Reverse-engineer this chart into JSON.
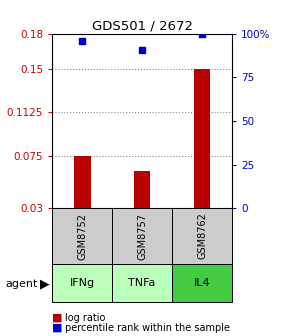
{
  "title": "GDS501 / 2672",
  "categories": [
    "IFNg",
    "TNFa",
    "IL4"
  ],
  "gsm_labels": [
    "GSM8752",
    "GSM8757",
    "GSM8762"
  ],
  "log_ratios": [
    0.075,
    0.062,
    0.15
  ],
  "percentile_ranks": [
    0.174,
    0.166,
    0.18
  ],
  "ylim": [
    0.03,
    0.18
  ],
  "yticks_left": [
    0.03,
    0.075,
    0.1125,
    0.15,
    0.18
  ],
  "yticks_right_vals": [
    0,
    25,
    50,
    75,
    100
  ],
  "yticks_right_labels": [
    "0",
    "25",
    "50",
    "75",
    "100%"
  ],
  "bar_color": "#bb0000",
  "scatter_color": "#0000cc",
  "gsm_box_color": "#cccccc",
  "agent_colors": [
    "#bbffbb",
    "#bbffbb",
    "#44cc44"
  ],
  "grid_color": "#888888",
  "left_axis_color": "#cc0000",
  "right_axis_color": "#0000cc",
  "bar_width": 0.28,
  "legend_bar_label": "log ratio",
  "legend_scatter_label": "percentile rank within the sample"
}
